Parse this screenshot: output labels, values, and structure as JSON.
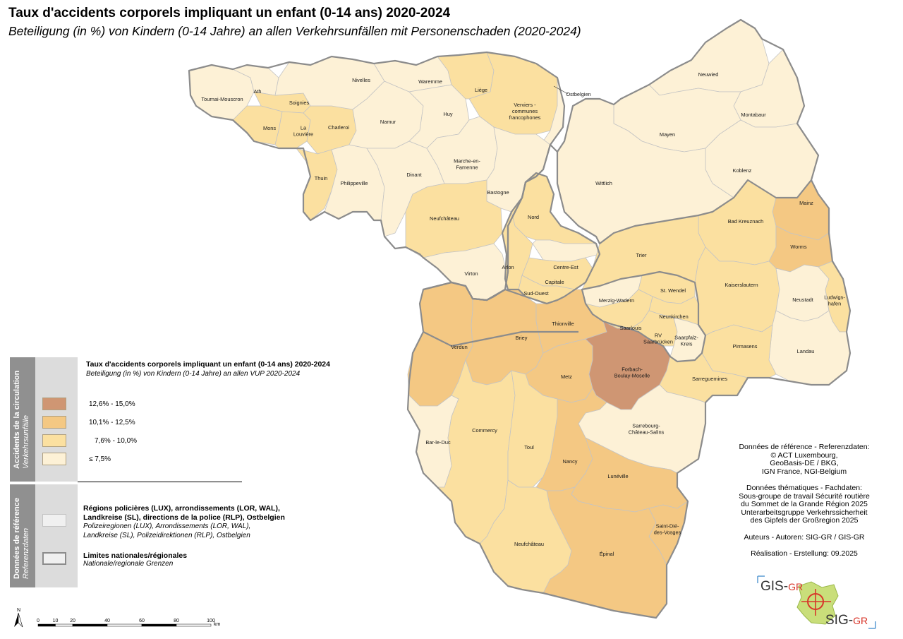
{
  "title": "Taux d'accidents corporels impliquant un enfant (0-14 ans) 2020-2024",
  "subtitle": "Beteiligung (in %) von Kindern (0-14 Jahre) an allen Verkehrsunfällen mit Personenschaden (2020-2024)",
  "colors": {
    "class1": "#fdf1d6",
    "class2": "#fbe0a0",
    "class3": "#f4c883",
    "class4": "#cf9673",
    "borders": "#8c8c8c"
  },
  "legend": {
    "side_top_fr": "Accidents de la circulation",
    "side_top_de": "Verkehrsunfälle",
    "side_bottom_fr": "Données de référence",
    "side_bottom_de": "Referenzdaten",
    "heading_fr": "Taux d'accidents corporels impliquant un enfant (0-14 ans) 2020-2024",
    "heading_de": "Beteiligung (in %) von Kindern (0-14 Jahre) an allen VUP 2020-2024",
    "classes": [
      {
        "label": "12,6% - 15,0%",
        "color": "#cf9673"
      },
      {
        "label": "10,1% - 12,5%",
        "color": "#f4c883"
      },
      {
        "label": "7,6% - 10,0%",
        "color": "#fbe0a0"
      },
      {
        "label": "≤ 7,5%",
        "color": "#fdf1d6"
      }
    ],
    "regions_fr": "Régions policières (LUX), arrondissements (LOR, WAL), Landkreise (SL), directions de la police (RLP), Ostbelgien",
    "regions_de": "Polizeiregionen (LUX), Arrondissements (LOR, WAL), Landkreise (SL), Polizeidirektionen (RLP), Ostbelgien",
    "limits_fr": "Limites nationales/régionales",
    "limits_de": "Nationale/regionale Grenzen"
  },
  "credits": {
    "ref_head": "Données de référence - Referenzdaten:",
    "ref_1": "© ACT Luxembourg,",
    "ref_2": "GeoBasis-DE / BKG,",
    "ref_3": "IGN France, NGI-Belgium",
    "them_head": "Données thématiques - Fachdaten:",
    "them_1": "Sous-groupe de travail Sécurité routière",
    "them_2": "du Sommet de la Grande Région 2025",
    "them_3": "Unterarbeitsgruppe Verkehrssicherheit",
    "them_4": "des Gipfels der Großregion 2025",
    "authors": "Auteurs - Autoren: SIG-GR / GIS-GR",
    "made": "Réalisation - Erstellung: 09.2025"
  },
  "logo": {
    "top": "GIS-GR",
    "bottom": "SIG-GR"
  },
  "scale": {
    "ticks": [
      "0",
      "10",
      "20",
      "40",
      "60",
      "80",
      "100"
    ],
    "unit": "km",
    "north": "N"
  },
  "regions": [
    {
      "name": "Tournai-Mouscron",
      "class": 1
    },
    {
      "name": "Ath",
      "class": 1
    },
    {
      "name": "Soignies",
      "class": 2
    },
    {
      "name": "Mons",
      "class": 2
    },
    {
      "name": "La Louvière",
      "class": 2
    },
    {
      "name": "Charleroi",
      "class": 2
    },
    {
      "name": "Thuin",
      "class": 2
    },
    {
      "name": "Philippeville",
      "class": 1
    },
    {
      "name": "Nivelles",
      "class": 1
    },
    {
      "name": "Namur",
      "class": 1
    },
    {
      "name": "Dinant",
      "class": 1
    },
    {
      "name": "Waremme",
      "class": 1
    },
    {
      "name": "Huy",
      "class": 1
    },
    {
      "name": "Liège",
      "class": 2
    },
    {
      "name": "Verviers - communes francophones",
      "class": 2
    },
    {
      "name": "Ostbelgien",
      "class": 1
    },
    {
      "name": "Marche-en-Famenne",
      "class": 1
    },
    {
      "name": "Bastogne",
      "class": 1
    },
    {
      "name": "Neufchâteau",
      "class": 2
    },
    {
      "name": "Virton",
      "class": 1
    },
    {
      "name": "Nord",
      "class": 2
    },
    {
      "name": "Arlon",
      "class": 2
    },
    {
      "name": "Centre-Est",
      "class": 1
    },
    {
      "name": "Capitale",
      "class": 2
    },
    {
      "name": "Sud-Ouest",
      "class": 2
    },
    {
      "name": "Neuwied",
      "class": 1
    },
    {
      "name": "Montabaur",
      "class": 1
    },
    {
      "name": "Mayen",
      "class": 1
    },
    {
      "name": "Koblenz",
      "class": 1
    },
    {
      "name": "Wittlich",
      "class": 1
    },
    {
      "name": "Mainz",
      "class": 3
    },
    {
      "name": "Bad Kreuznach",
      "class": 2
    },
    {
      "name": "Worms",
      "class": 3
    },
    {
      "name": "Trier",
      "class": 2
    },
    {
      "name": "Kaiserslautern",
      "class": 2
    },
    {
      "name": "Neustadt",
      "class": 1
    },
    {
      "name": "Ludwigs-hafen",
      "class": 2
    },
    {
      "name": "Landau",
      "class": 1
    },
    {
      "name": "Pirmasens",
      "class": 2
    },
    {
      "name": "Merzig-Wadern",
      "class": 1
    },
    {
      "name": "St. Wendel",
      "class": 2
    },
    {
      "name": "Neunkirchen",
      "class": 2
    },
    {
      "name": "Saarlouis",
      "class": 2
    },
    {
      "name": "RV Saarbrücken",
      "class": 2
    },
    {
      "name": "Saarpfalz-Kreis",
      "class": 1
    },
    {
      "name": "Verdun",
      "class": 3
    },
    {
      "name": "Briey",
      "class": 3
    },
    {
      "name": "Thionville",
      "class": 3
    },
    {
      "name": "Metz",
      "class": 3
    },
    {
      "name": "Forbach-Boulay-Moselle",
      "class": 4
    },
    {
      "name": "Sarreguemines",
      "class": 2
    },
    {
      "name": "Sarrebourg-Château-Salins",
      "class": 1
    },
    {
      "name": "Bar-le-Duc",
      "class": 1
    },
    {
      "name": "Commercy",
      "class": 2
    },
    {
      "name": "Toul",
      "class": 2
    },
    {
      "name": "Nancy",
      "class": 3
    },
    {
      "name": "Lunéville",
      "class": 3
    },
    {
      "name": "Neufchâteau",
      "class": 2
    },
    {
      "name": "Épinal",
      "class": 3
    },
    {
      "name": "Saint-Dié-des-Vosges",
      "class": 3
    }
  ]
}
